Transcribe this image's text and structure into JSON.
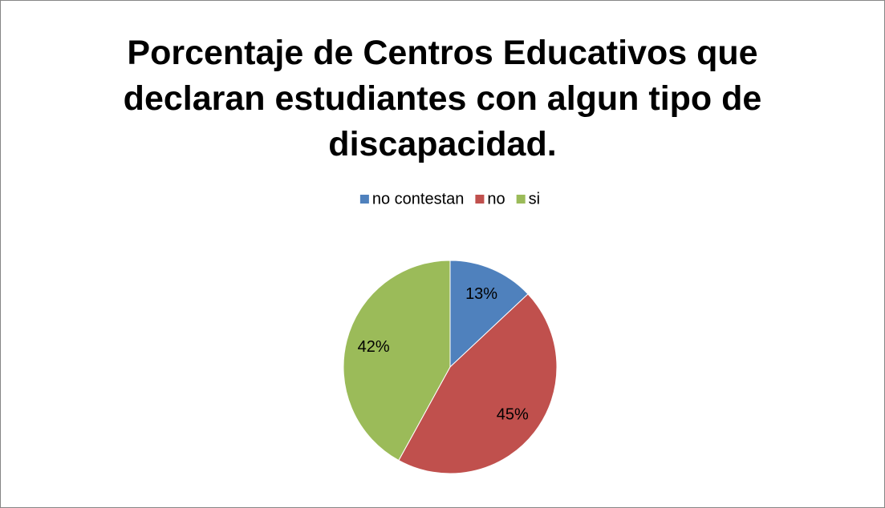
{
  "chart_data": {
    "type": "pie",
    "title": "Porcentaje de Centros Educativos que declaran estudiantes con algun tipo de discapacidad.",
    "categories": [
      "no contestan",
      "no",
      "si"
    ],
    "values": [
      13,
      45,
      42
    ],
    "value_labels": [
      "13%",
      "45%",
      "42%"
    ],
    "colors": [
      "#4f81bd",
      "#c0504d",
      "#9bbb59"
    ],
    "legend": "top"
  }
}
